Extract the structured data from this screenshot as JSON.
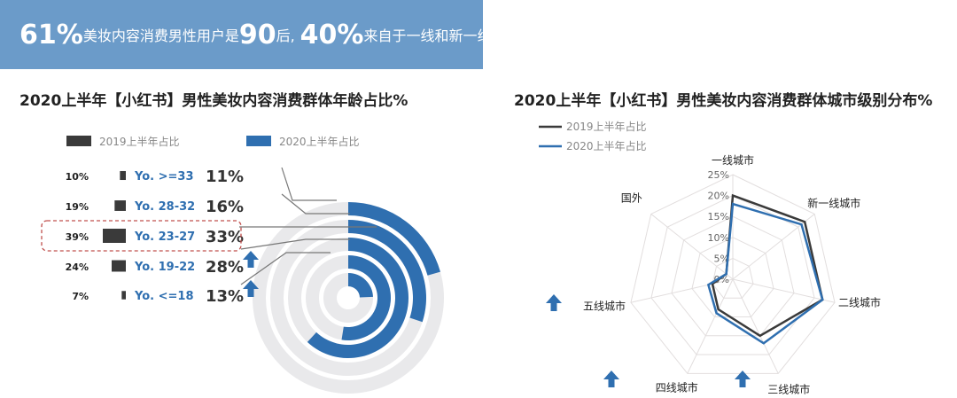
{
  "banner": {
    "p1": "61%",
    "t1": "美妆内容消费男性用户是",
    "p2": "90",
    "t2": "后,",
    "p3": "40%",
    "t3": "来自于一线和新一线城市"
  },
  "colors": {
    "y2019": "#3a3a3a",
    "y2020": "#2f6fb0",
    "ring_bg": "#e9e9eb",
    "highlight": "#c0504d",
    "banner": "#6b9bc9"
  },
  "icons": {
    "up_arrow": "up-arrow-icon"
  },
  "chart_data": [
    {
      "type": "bar",
      "title": "2020上半年【小红书】男性美妆内容消费群体年龄占比%",
      "legend": {
        "placement": "top-left"
      },
      "categories": [
        "Yo. >=33",
        "Yo. 28-32",
        "Yo. 23-27",
        "Yo. 19-22",
        "Yo. <=18"
      ],
      "series": [
        {
          "name": "2019上半年占比",
          "values": [
            10,
            19,
            39,
            24,
            7
          ],
          "labels": [
            "10%",
            "19%",
            "39%",
            "24%",
            "7%"
          ]
        },
        {
          "name": "2020上半年占比",
          "values": [
            11,
            16,
            33,
            28,
            13
          ],
          "labels": [
            "11%",
            "16%",
            "33%",
            "28%",
            "13%"
          ]
        }
      ],
      "highlight_category": "Yo. 23-27",
      "up_arrows": [
        "Yo. 19-22",
        "Yo. <=18"
      ]
    },
    {
      "type": "radar",
      "title": "2020上半年【小红书】男性美妆内容消费群体城市级别分布%",
      "legend": {
        "placement": "top-left"
      },
      "categories": [
        "一线城市",
        "新一线城市",
        "二线城市",
        "三线城市",
        "四线城市",
        "五线城市",
        "国外"
      ],
      "axis_ticks": [
        "0%",
        "5%",
        "10%",
        "15%",
        "20%",
        "25%"
      ],
      "rmax": 25,
      "series": [
        {
          "name": "2019上半年占比",
          "values": [
            20,
            22,
            22,
            15,
            8,
            5,
            2
          ]
        },
        {
          "name": "2020上半年占比",
          "values": [
            18,
            21,
            22,
            17,
            9,
            6,
            2
          ]
        }
      ],
      "up_arrows": [
        "三线城市",
        "四线城市",
        "五线城市"
      ]
    }
  ]
}
